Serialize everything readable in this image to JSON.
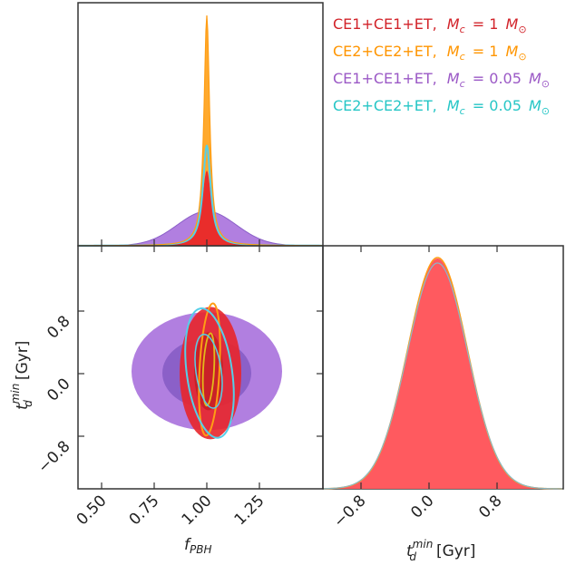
{
  "colors": {
    "red": "#e8262b",
    "red_dark": "#c92128",
    "orange": "#ffa92d",
    "orange_line": "#ff9d14",
    "purple": "#b17fe0",
    "purple_dark": "#8b60c8",
    "cyan": "#63dcdc",
    "cyan_line": "#55cfe8",
    "axis": "#333333"
  },
  "legend": [
    {
      "base": "CE1+CE1+ET,",
      "m": "M",
      "sub": "c",
      "eq": "= 1",
      "unit": "M",
      "sun": "⊙",
      "color": "#d2232a"
    },
    {
      "base": "CE2+CE2+ET,",
      "m": "M",
      "sub": "c",
      "eq": "= 1",
      "unit": "M",
      "sun": "⊙",
      "color": "#ff9500"
    },
    {
      "base": "CE1+CE1+ET,",
      "m": "M",
      "sub": "c",
      "eq": "= 0.05",
      "unit": "M",
      "sun": "⊙",
      "color": "#9b59c6"
    },
    {
      "base": "CE2+CE2+ET,",
      "m": "M",
      "sub": "c",
      "eq": "= 0.05",
      "unit": "M",
      "sun": "⊙",
      "color": "#26c6c6"
    }
  ],
  "axes": {
    "x_left_main": "f",
    "x_left_sub": "PBH",
    "x_right_main": "t",
    "x_right_sub": "d",
    "x_right_sup": "min",
    "x_right_unit": "[Gyr]",
    "y_left_main": "t",
    "y_left_sub": "d",
    "y_left_sup": "min",
    "y_left_unit": "[Gyr]"
  },
  "chart_data": {
    "type": "corner",
    "parameters": [
      "f_PBH",
      "t_d^min"
    ],
    "f_pbh_ticks": [
      "0.50",
      "0.75",
      "1.00",
      "1.25"
    ],
    "t_ticks": [
      "-0.8",
      "0.0",
      "0.8"
    ],
    "f_pbh_range": [
      0.4,
      1.55
    ],
    "t_range": [
      -1.45,
      1.5
    ],
    "grid": false,
    "legend_position": "top-right",
    "series": [
      {
        "name": "CE1+CE1+ET, M_c = 1 M_sun",
        "f_center": 1.0,
        "f_sigma": 0.05,
        "t_center": 0.1,
        "t_sigma": 0.35
      },
      {
        "name": "CE2+CE2+ET, M_c = 1 M_sun",
        "f_center": 1.0,
        "f_sigma": 0.016,
        "t_center": 0.1,
        "t_sigma": 0.35
      },
      {
        "name": "CE1+CE1+ET, M_c = 0.05 M_sun",
        "f_center": 1.0,
        "f_sigma": 0.14,
        "t_center": 0.1,
        "t_sigma": 0.35
      },
      {
        "name": "CE2+CE2+ET, M_c = 0.05 M_sun",
        "f_center": 1.0,
        "f_sigma": 0.04,
        "t_center": 0.1,
        "t_sigma": 0.35
      }
    ]
  }
}
